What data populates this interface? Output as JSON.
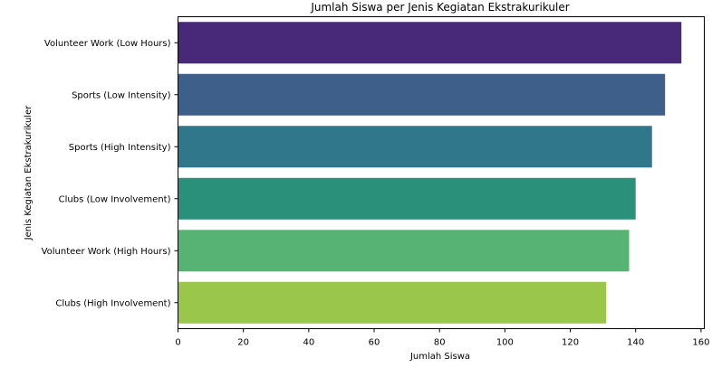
{
  "chart_data": {
    "type": "bar",
    "orientation": "horizontal",
    "title": "Jumlah Siswa per Jenis Kegiatan Ekstrakurikuler",
    "xlabel": "Jumlah Siswa",
    "ylabel": "Jenis Kegiatan Ekstrakurikuler",
    "categories": [
      "Volunteer Work (Low Hours)",
      "Sports (Low Intensity)",
      "Sports (High Intensity)",
      "Clubs (Low Involvement)",
      "Volunteer Work (High Hours)",
      "Clubs (High Involvement)"
    ],
    "values": [
      154,
      149,
      145,
      140,
      138,
      131
    ],
    "xlim": [
      0,
      161
    ],
    "xticks": [
      0,
      20,
      40,
      60,
      80,
      100,
      120,
      140,
      160
    ],
    "grid": false,
    "colors": [
      "#482878",
      "#3e5f8a",
      "#31778b",
      "#2a9079",
      "#56b373",
      "#9ac74b"
    ]
  }
}
